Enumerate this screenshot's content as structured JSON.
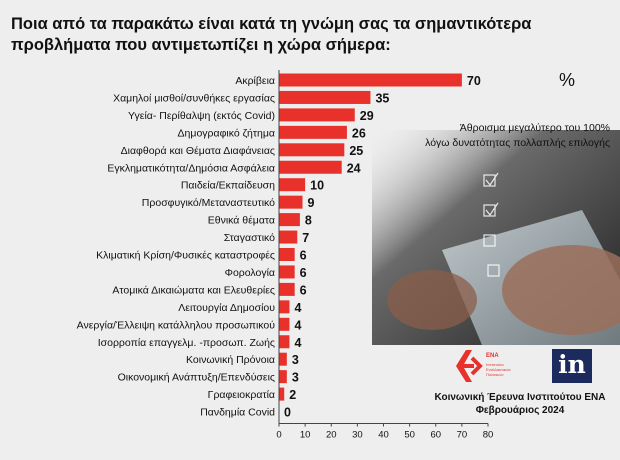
{
  "title_lines": [
    "Ποια από τα παρακάτω είναι κατά τη γνώμη σας τα σημαντικότερα",
    "προβλήματα που αντιμετωπίζει η χώρα σήμερα:"
  ],
  "percent_symbol": "%",
  "note_lines": [
    "Άθροισμα μεγαλύτερο του 100%",
    "λόγω δυνατότητας πολλαπλής επιλογής"
  ],
  "survey_lines": [
    "Κοινωνική Έρευνα Ινστιτούτου ΕΝΑ",
    "Φεβρουάριος 2024"
  ],
  "logos": {
    "ena": {
      "name": "ΕΝΑ",
      "subtitle_lines": [
        "Ινστιτούτο",
        "Εναλλακτικών",
        "Πολιτικών"
      ]
    },
    "in": "in"
  },
  "colors": {
    "bar": "#e8312b",
    "axis": "#444444",
    "photo": "#2b2b2b"
  },
  "chart_data": {
    "type": "bar",
    "orientation": "horizontal",
    "categories": [
      "Ακρίβεια",
      "Χαμηλοί μισθοί/συνθήκες εργασίας",
      "Υγεία- Περίθαλψη (εκτός Covid)",
      "Δημογραφικό  ζήτημα",
      "Διαφθορά και Θέματα Διαφάνειας",
      "Εγκληματικότητα/Δημόσια Ασφάλεια",
      "Παιδεία/Εκπαίδευση",
      "Προσφυγικό/Μεταναστευτικό",
      "Εθνικά θέματα",
      "Σταγαστικό",
      "Κλιματική Κρίση/Φυσικές καταστροφές",
      "Φορολογία",
      "Ατομικά Δικαιώματα και Ελευθερίες",
      "Λειτουργία Δημοσίου",
      "Ανεργία/Έλλειψη κατάλληλου προσωπικού",
      "Ισορροπία επαγγελμ. -προσωπ. Ζωής",
      "Κοινωνική Πρόνοια",
      "Οικονομική Ανάπτυξη/Επενδύσεις",
      "Γραφειοκρατία",
      "Πανδημία Covid"
    ],
    "values": [
      70,
      35,
      29,
      26,
      25,
      24,
      10,
      9,
      8,
      7,
      6,
      6,
      6,
      4,
      4,
      4,
      3,
      3,
      2,
      0
    ],
    "xlim": [
      0,
      80
    ],
    "xticks": [
      0,
      10,
      20,
      30,
      40,
      50,
      60,
      70,
      80
    ],
    "data_labels": true
  }
}
